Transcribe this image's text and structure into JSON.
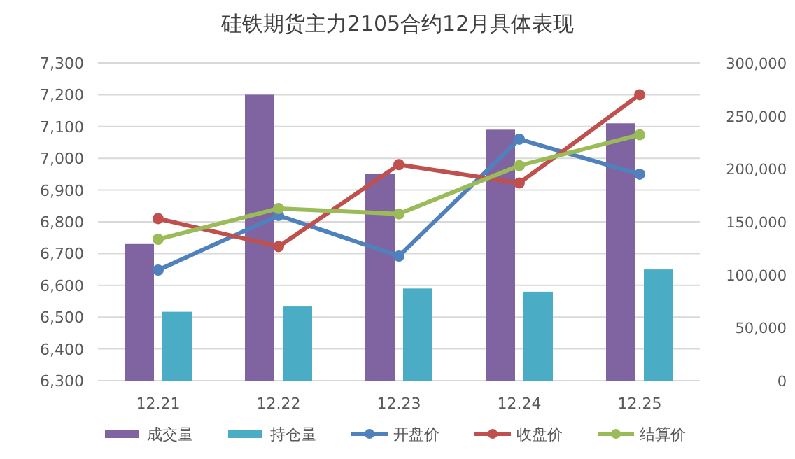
{
  "chart_data": {
    "type": "bar",
    "title": "硅铁期货主力2105合约12月具体表现",
    "categories": [
      "12.21",
      "12.22",
      "12.23",
      "12.24",
      "12.25"
    ],
    "series": [
      {
        "name": "成交量",
        "color": "#8064a2",
        "axis": "y2",
        "values": [
          129000,
          270000,
          195000,
          237000,
          243000
        ]
      },
      {
        "name": "持仓量",
        "color": "#4bacc6",
        "axis": "y2",
        "values": [
          65000,
          70000,
          87000,
          84000,
          105000
        ]
      },
      {
        "name": "开盘价",
        "type": "line",
        "color": "#4f81bd",
        "values": [
          6648,
          6820,
          6692,
          7060,
          6950
        ]
      },
      {
        "name": "收盘价",
        "type": "line",
        "color": "#c0504d",
        "values": [
          6810,
          6722,
          6980,
          6922,
          7200
        ]
      },
      {
        "name": "结算价",
        "type": "line",
        "color": "#9bbb59",
        "values": [
          6745,
          6842,
          6825,
          6977,
          7074
        ]
      }
    ],
    "ylim": [
      6300,
      7300
    ],
    "yticks": [
      {
        "value": 6300,
        "label": "6,300"
      },
      {
        "value": 6400,
        "label": "6,400"
      },
      {
        "value": 6500,
        "label": "6,500"
      },
      {
        "value": 6600,
        "label": "6,600"
      },
      {
        "value": 6700,
        "label": "6,700"
      },
      {
        "value": 6800,
        "label": "6,800"
      },
      {
        "value": 6900,
        "label": "6,900"
      },
      {
        "value": 7000,
        "label": "7,000"
      },
      {
        "value": 7100,
        "label": "7,100"
      },
      {
        "value": 7200,
        "label": "7,200"
      },
      {
        "value": 7300,
        "label": "7,300"
      }
    ],
    "y2lim": [
      0,
      300000
    ],
    "y2ticks": [
      0,
      {
        "value": 50000,
        "label": "50,000"
      },
      {
        "value": 100000,
        "label": "100,000"
      },
      {
        "value": 150000,
        "label": "150,000"
      },
      {
        "value": 200000,
        "label": "200,000"
      },
      {
        "value": 250000,
        "label": "250,000"
      },
      {
        "value": 300000,
        "label": "300,000"
      }
    ],
    "grid": "y",
    "legend": "bottom",
    "marker": "circle"
  }
}
